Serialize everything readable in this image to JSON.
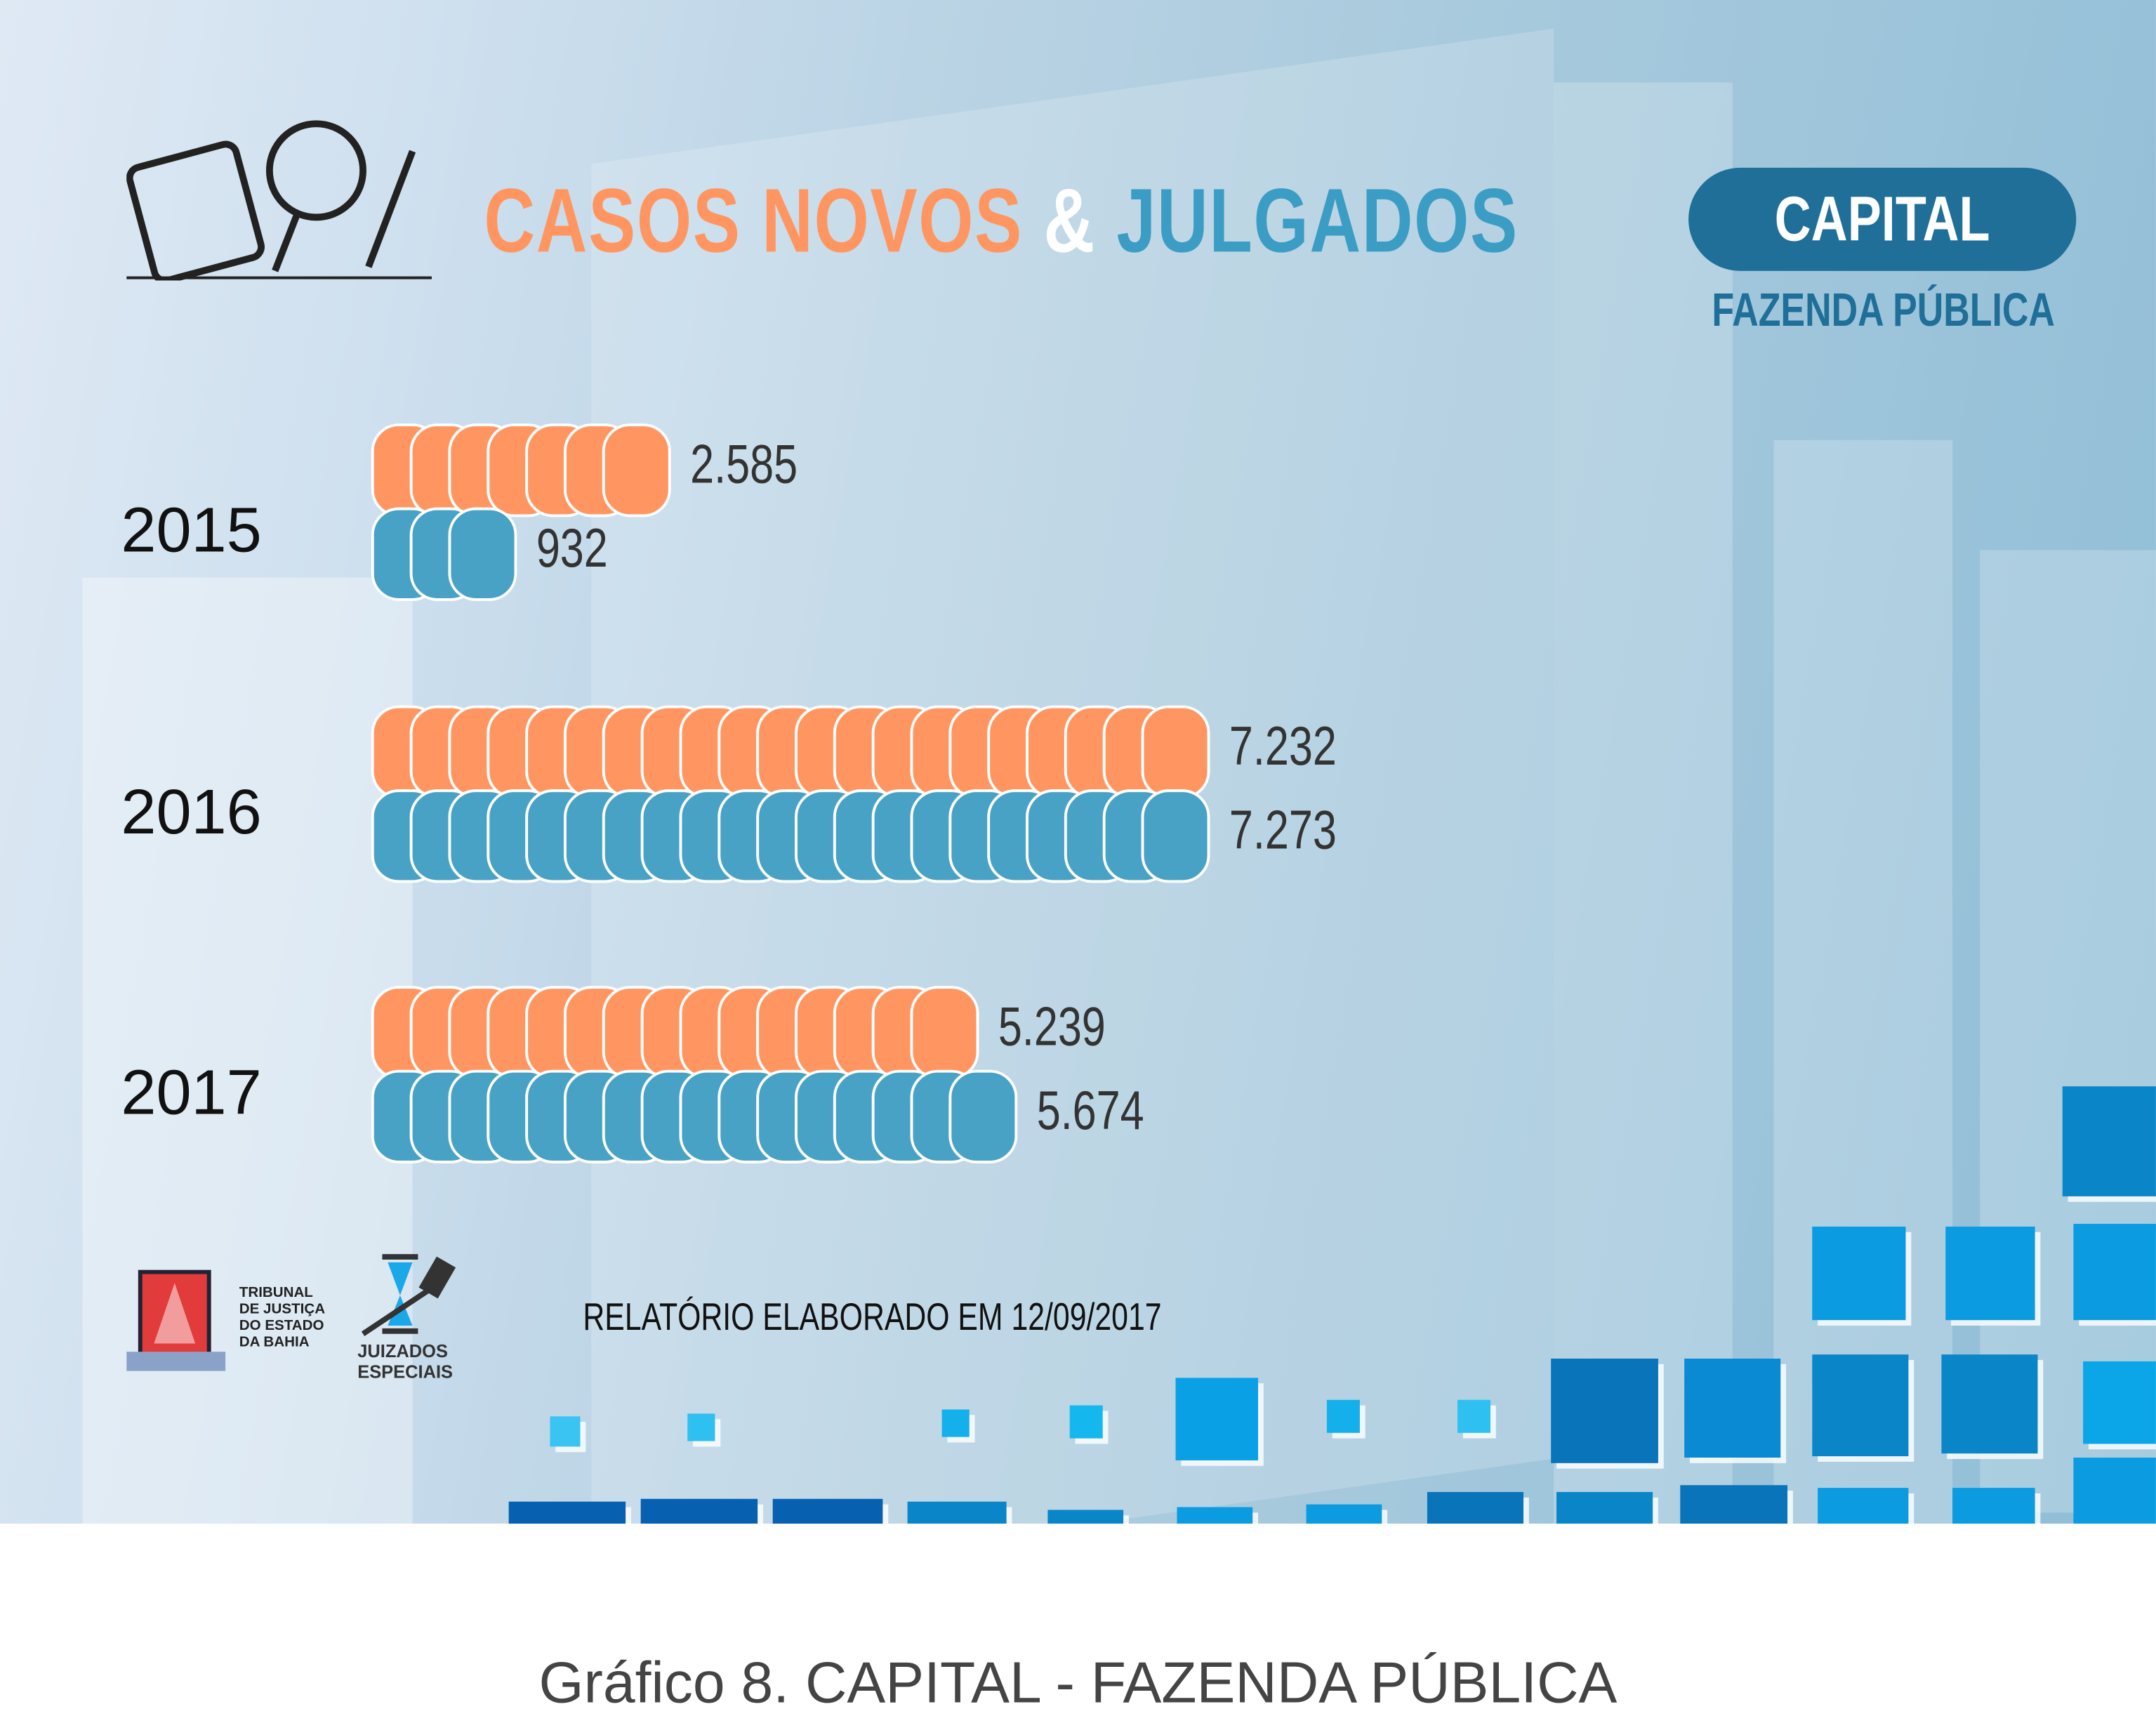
{
  "header": {
    "title_part1": "CASOS NOVOS",
    "title_amp": "&",
    "title_part2": "JULGADOS",
    "badge": "CAPITAL",
    "subtitle": "FAZENDA PÚBLICA"
  },
  "colors": {
    "casos_novos": "#ff9661",
    "julgados": "#48a2c5",
    "badge": "#1f6f98"
  },
  "chart_data": {
    "type": "bar",
    "orientation": "horizontal",
    "title": "CASOS NOVOS & JULGADOS",
    "categories": [
      "2015",
      "2016",
      "2017"
    ],
    "series": [
      {
        "name": "Casos Novos",
        "color": "#ff9661",
        "values": [
          2585,
          7232,
          5239
        ],
        "labels": [
          "2.585",
          "7.232",
          "5.239"
        ]
      },
      {
        "name": "Julgados",
        "color": "#48a2c5",
        "values": [
          932,
          7273,
          5674
        ],
        "labels": [
          "932",
          "7.273",
          "5.674"
        ]
      }
    ]
  },
  "logos": {
    "tribunal": "TRIBUNAL DE JUSTIÇA DO ESTADO DA BAHIA",
    "tribunal_lines": [
      "TRIBUNAL",
      "DE JUSTIÇA",
      "DO ESTADO",
      "DA BAHIA"
    ],
    "juizados_lines": [
      "JUIZADOS",
      "ESPECIAIS"
    ]
  },
  "footer": {
    "report": "RELATÓRIO ELABORADO EM 12/09/2017",
    "caption": "Gráfico 8. CAPITAL - FAZENDA PÚBLICA"
  }
}
